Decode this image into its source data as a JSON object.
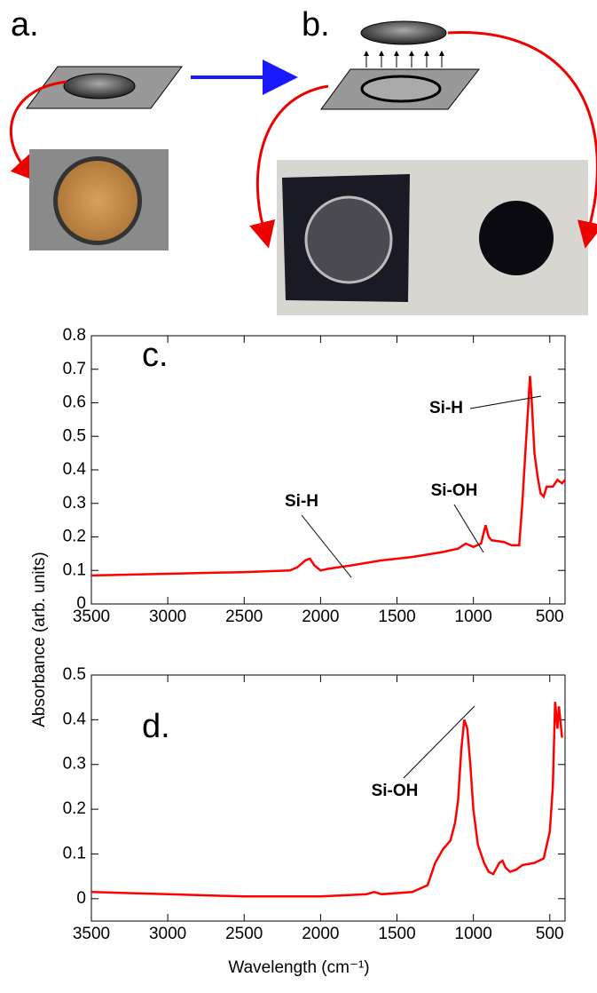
{
  "figure": {
    "labels": [
      "a.",
      "b."
    ]
  },
  "chart_data": [
    {
      "type": "line",
      "ylabel": "Absorbance (arb. units)",
      "annotations": [
        "c.",
        "Si-H",
        "Si-OH",
        "Si-H"
      ],
      "x": [
        3500,
        3000,
        2500,
        2200,
        2150,
        2100,
        2070,
        2040,
        2000,
        1950,
        1800,
        1600,
        1400,
        1200,
        1100,
        1050,
        1000,
        950,
        920,
        900,
        880,
        800,
        750,
        700,
        680,
        660,
        640,
        630,
        620,
        600,
        580,
        560,
        540,
        520,
        480,
        450,
        420,
        400
      ],
      "values": [
        0.085,
        0.09,
        0.095,
        0.1,
        0.11,
        0.13,
        0.135,
        0.115,
        0.1,
        0.105,
        0.115,
        0.13,
        0.14,
        0.155,
        0.165,
        0.18,
        0.17,
        0.18,
        0.235,
        0.2,
        0.19,
        0.185,
        0.175,
        0.175,
        0.3,
        0.45,
        0.6,
        0.68,
        0.62,
        0.45,
        0.38,
        0.33,
        0.32,
        0.35,
        0.35,
        0.37,
        0.36,
        0.37
      ],
      "color": "#ff0000",
      "xlim": [
        3500,
        400
      ],
      "xticks": [
        3500,
        3000,
        2500,
        2000,
        1500,
        1000,
        500
      ],
      "ylim": [
        0,
        0.8
      ],
      "yticks": [
        0,
        0.1,
        0.2,
        0.3,
        0.4,
        0.5,
        0.6,
        0.7,
        0.8
      ]
    },
    {
      "type": "line",
      "xlabel": "Wavelength (cm⁻¹)",
      "annotations": [
        "d.",
        "Si-OH"
      ],
      "x": [
        3500,
        3000,
        2500,
        2000,
        1700,
        1650,
        1600,
        1400,
        1300,
        1250,
        1200,
        1150,
        1120,
        1100,
        1080,
        1060,
        1040,
        1020,
        1000,
        970,
        930,
        900,
        870,
        830,
        810,
        790,
        760,
        720,
        680,
        600,
        540,
        500,
        480,
        465,
        450,
        440,
        420
      ],
      "values": [
        0.015,
        0.01,
        0.005,
        0.005,
        0.01,
        0.015,
        0.01,
        0.015,
        0.03,
        0.08,
        0.11,
        0.13,
        0.17,
        0.22,
        0.33,
        0.4,
        0.38,
        0.3,
        0.2,
        0.12,
        0.08,
        0.06,
        0.055,
        0.08,
        0.085,
        0.07,
        0.06,
        0.065,
        0.075,
        0.08,
        0.09,
        0.15,
        0.25,
        0.44,
        0.38,
        0.43,
        0.36
      ],
      "color": "#ff0000",
      "xlim": [
        3500,
        400
      ],
      "xticks": [
        3500,
        3000,
        2500,
        2000,
        1500,
        1000,
        500
      ],
      "ylim": [
        -0.05,
        0.5
      ],
      "yticks": [
        0,
        0.1,
        0.2,
        0.3,
        0.4,
        0.5
      ]
    }
  ]
}
